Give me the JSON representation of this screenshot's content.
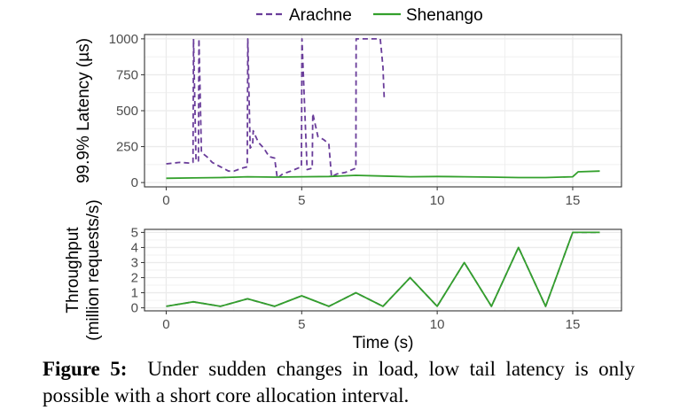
{
  "colors": {
    "arachne": "#6a3d9a",
    "shenango": "#33a02c",
    "grid": "#ebebeb",
    "axis": "#333333"
  },
  "legend": {
    "placement": "top",
    "items": [
      "Arachne",
      "Shenango"
    ]
  },
  "caption": {
    "label": "Figure 5:",
    "text": "Under sudden changes in load, low tail latency is only possible with a short core allocation interval."
  },
  "chart_data": [
    {
      "type": "line",
      "ylabel": "99.9% Latency (µs)",
      "xlim": [
        -0.8,
        16.8
      ],
      "ylim": [
        -30,
        1030
      ],
      "xticks": [
        0,
        5,
        10,
        15
      ],
      "yticks": [
        0,
        250,
        500,
        750,
        1000
      ],
      "grid": true,
      "series": [
        {
          "name": "Arachne",
          "style": "dashed",
          "x": [
            0,
            0.5,
            0.9,
            0.99,
            1.01,
            1.1,
            1.19,
            1.21,
            1.3,
            1.5,
            1.7,
            2.0,
            2.3,
            2.5,
            2.8,
            2.99,
            3.01,
            3.1,
            3.19,
            3.21,
            3.4,
            3.6,
            3.8,
            4.0,
            4.1,
            4.3,
            4.6,
            4.99,
            5.01,
            5.2,
            5.39,
            5.41,
            5.6,
            5.8,
            6.0,
            6.1,
            6.3,
            6.6,
            7.0,
            7.01,
            7.9,
            7.95,
            8.0,
            8.02,
            8.05
          ],
          "y": [
            130,
            140,
            135,
            140,
            1000,
            150,
            150,
            1000,
            210,
            180,
            140,
            110,
            80,
            80,
            100,
            110,
            1000,
            240,
            260,
            360,
            280,
            240,
            180,
            170,
            30,
            60,
            80,
            110,
            1000,
            90,
            100,
            480,
            320,
            300,
            270,
            40,
            60,
            70,
            100,
            1000,
            1000,
            900,
            800,
            700,
            570
          ]
        },
        {
          "name": "Shenango",
          "style": "solid",
          "x": [
            0,
            1,
            2,
            3,
            4,
            5,
            6,
            7,
            8,
            9,
            10,
            11,
            12,
            13,
            14,
            15,
            15.2,
            16
          ],
          "y": [
            30,
            32,
            35,
            40,
            38,
            40,
            42,
            50,
            45,
            40,
            42,
            40,
            38,
            35,
            35,
            40,
            75,
            80
          ]
        }
      ]
    },
    {
      "type": "line",
      "xlabel": "Time (s)",
      "ylabel": "Throughput (million requests/s)",
      "xlim": [
        -0.8,
        16.8
      ],
      "ylim": [
        -0.2,
        5.2
      ],
      "xticks": [
        0,
        5,
        10,
        15
      ],
      "yticks": [
        0,
        1,
        2,
        3,
        4,
        5
      ],
      "grid": true,
      "series": [
        {
          "name": "Arachne",
          "style": "dashed",
          "x": [
            0,
            1,
            2,
            3,
            4,
            5,
            6,
            7,
            8,
            9,
            10,
            11,
            12,
            13,
            14,
            15,
            16
          ],
          "y": [
            0.1,
            0.4,
            0.1,
            0.6,
            0.1,
            0.8,
            0.1,
            1.0,
            0.1,
            2.0,
            0.1,
            3.0,
            0.1,
            4.0,
            0.1,
            5.0,
            5.0
          ]
        },
        {
          "name": "Shenango",
          "style": "solid",
          "x": [
            0,
            1,
            2,
            3,
            4,
            5,
            6,
            7,
            8,
            9,
            10,
            11,
            12,
            13,
            14,
            15,
            16
          ],
          "y": [
            0.1,
            0.4,
            0.1,
            0.6,
            0.1,
            0.8,
            0.1,
            1.0,
            0.1,
            2.0,
            0.1,
            3.0,
            0.1,
            4.0,
            0.1,
            5.0,
            5.0
          ]
        }
      ]
    }
  ]
}
